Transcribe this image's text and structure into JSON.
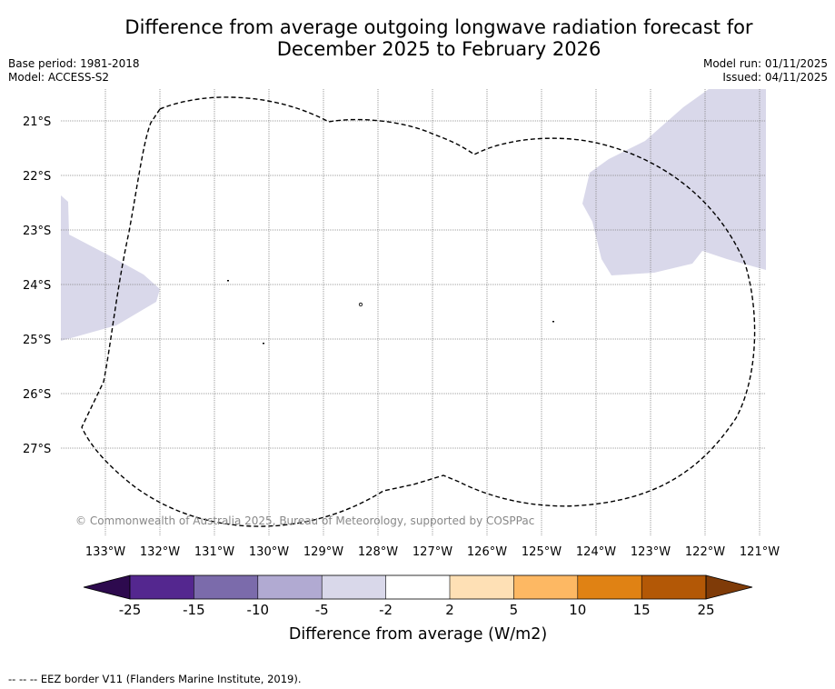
{
  "title_line1": "Difference from average outgoing longwave radiation forecast for",
  "title_line2": "December 2025 to February 2026",
  "meta": {
    "base_period": "Base period: 1981-2018",
    "model": "Model: ACCESS-S2",
    "model_run": "Model run: 01/11/2025",
    "issued": "Issued: 04/11/2025"
  },
  "map": {
    "lat_labels": [
      "21°S",
      "22°S",
      "23°S",
      "24°S",
      "25°S",
      "26°S",
      "27°S"
    ],
    "lon_labels": [
      "133°W",
      "132°W",
      "131°W",
      "130°W",
      "129°W",
      "128°W",
      "127°W",
      "126°W",
      "125°W",
      "124°W",
      "123°W",
      "122°W",
      "121°W"
    ],
    "copyright": "© Commonwealth of Australia 2025, Bureau of Meteorology, supported by COSPPac",
    "anomaly_category": "-5 to -2"
  },
  "colorbar": {
    "ticks": [
      "-25",
      "-15",
      "-10",
      "-5",
      "-2",
      "2",
      "5",
      "10",
      "15",
      "25"
    ],
    "colors": [
      "#2d0a4e",
      "#54278f",
      "#7b6bab",
      "#b1aad2",
      "#d9d8ea",
      "#ffffff",
      "#fee0b5",
      "#fdb863",
      "#e08214",
      "#b35806",
      "#7f3b08"
    ],
    "label": "Difference from average (W/m2)"
  },
  "footer": "--  --  -- EEZ border V11 (Flanders Marine Institute, 2019)."
}
